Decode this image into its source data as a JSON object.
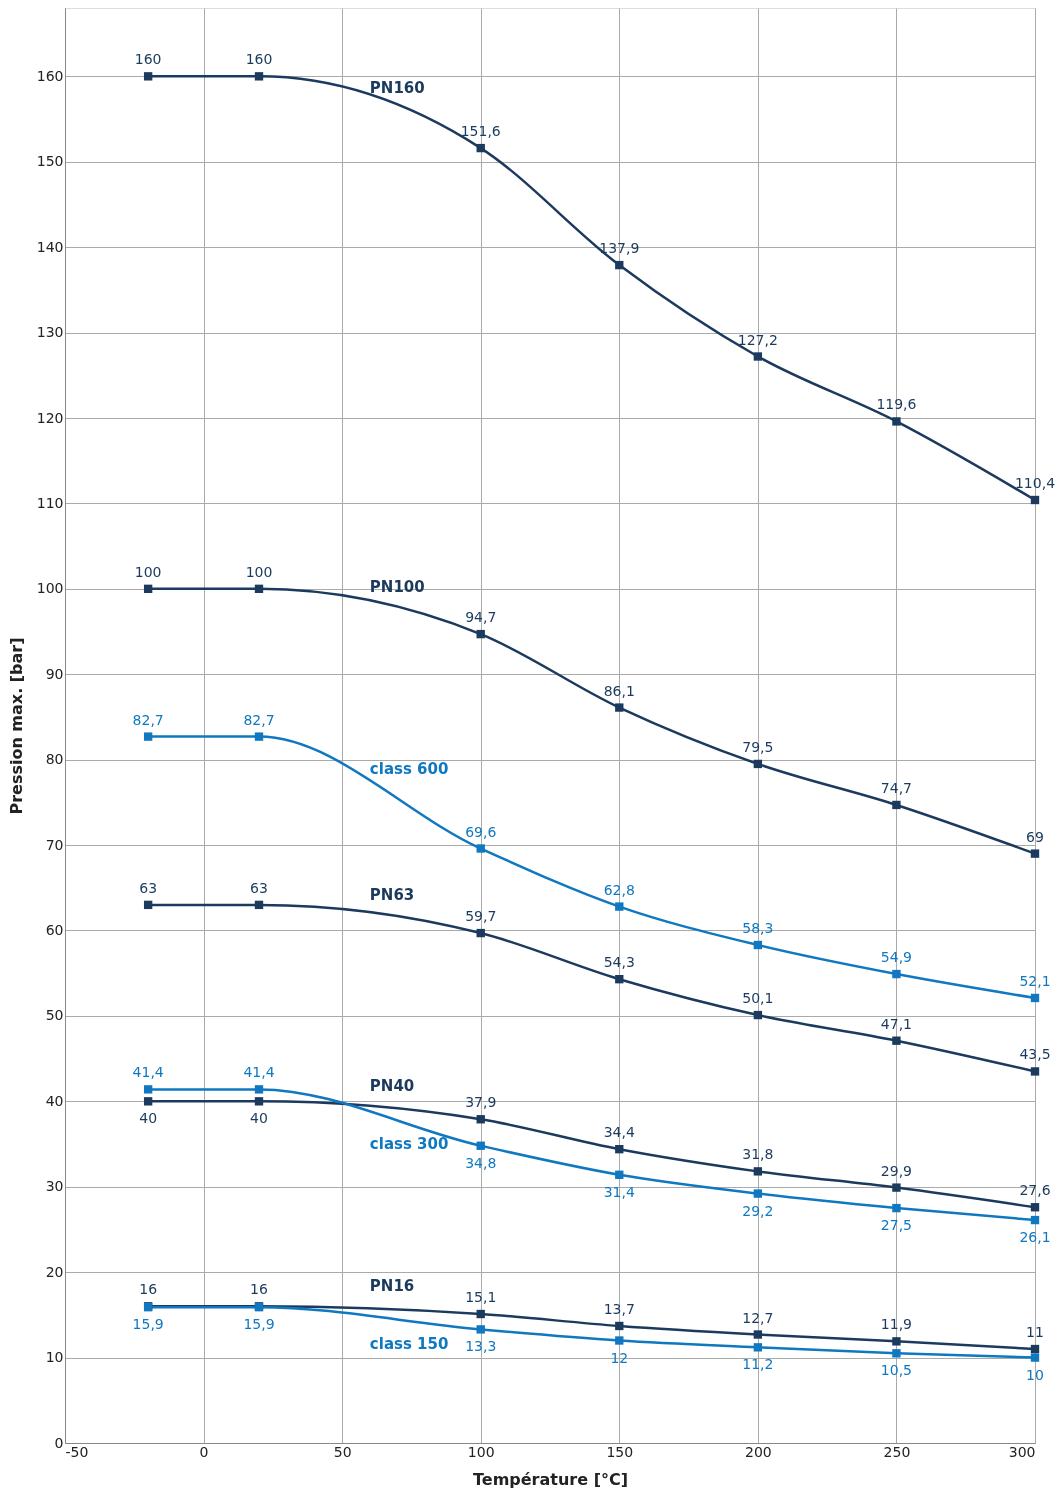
{
  "chart_data": {
    "type": "line",
    "xlabel": "Température [°C]",
    "ylabel": "Pression max. [bar]",
    "x": [
      -20,
      20,
      100,
      150,
      200,
      250,
      300
    ],
    "series": [
      {
        "name": "PN160",
        "color": "#1b3a5e",
        "values": [
          160,
          160,
          151.6,
          137.9,
          127.2,
          119.6,
          110.4
        ],
        "value_labels": [
          "160",
          "160",
          "151,6",
          "137,9",
          "127,2",
          "119,6",
          "110,4"
        ]
      },
      {
        "name": "PN100",
        "color": "#1b3a5e",
        "values": [
          100,
          100,
          94.7,
          86.1,
          79.5,
          74.7,
          69
        ],
        "value_labels": [
          "100",
          "100",
          "94,7",
          "86,1",
          "79,5",
          "74,7",
          "69"
        ]
      },
      {
        "name": "class 600",
        "color": "#0f78c0",
        "values": [
          82.7,
          82.7,
          69.6,
          62.8,
          58.3,
          54.9,
          52.1
        ],
        "value_labels": [
          "82,7",
          "82,7",
          "69,6",
          "62,8",
          "58,3",
          "54,9",
          "52,1"
        ]
      },
      {
        "name": "PN63",
        "color": "#1b3a5e",
        "values": [
          63,
          63,
          59.7,
          54.3,
          50.1,
          47.1,
          43.5
        ],
        "value_labels": [
          "63",
          "63",
          "59,7",
          "54,3",
          "50,1",
          "47,1",
          "43,5"
        ]
      },
      {
        "name": "PN40",
        "color": "#1b3a5e",
        "values": [
          40,
          40,
          37.9,
          34.4,
          31.8,
          29.9,
          27.6
        ],
        "value_labels": [
          "40",
          "40",
          "37,9",
          "34,4",
          "31,8",
          "29,9",
          "27,6"
        ]
      },
      {
        "name": "class 300",
        "color": "#0f78c0",
        "values": [
          41.4,
          41.4,
          34.8,
          31.4,
          29.2,
          27.5,
          26.1
        ],
        "value_labels": [
          "41,4",
          "41,4",
          "34,8",
          "31,4",
          "29,2",
          "27,5",
          "26,1"
        ]
      },
      {
        "name": "PN16",
        "color": "#1b3a5e",
        "values": [
          16,
          16,
          15.1,
          13.7,
          12.7,
          11.9,
          11
        ],
        "value_labels": [
          "16",
          "16",
          "15,1",
          "13,7",
          "12,7",
          "11,9",
          "11"
        ]
      },
      {
        "name": "class 150",
        "color": "#0f78c0",
        "values": [
          15.9,
          15.9,
          13.3,
          12,
          11.2,
          10.5,
          10
        ],
        "value_labels": [
          "15,9",
          "15,9",
          "13,3",
          "12",
          "11,2",
          "10,5",
          "10"
        ]
      }
    ],
    "xlim": [
      -50,
      300
    ],
    "xticks": [
      -50,
      0,
      50,
      100,
      150,
      200,
      250,
      300
    ],
    "ylim": [
      0,
      168
    ],
    "yticks": [
      0,
      10,
      20,
      30,
      40,
      50,
      60,
      70,
      80,
      90,
      100,
      110,
      120,
      130,
      140,
      150,
      160
    ],
    "grid": true,
    "legend": false,
    "marker": "square",
    "line_style": "solid"
  }
}
